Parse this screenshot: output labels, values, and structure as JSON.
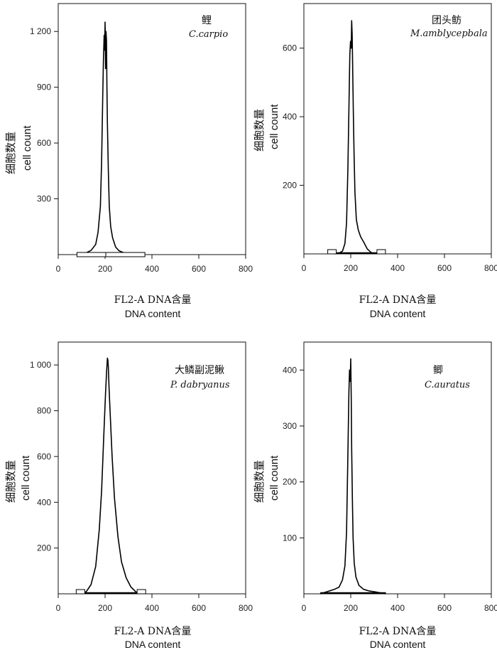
{
  "chart_data": [
    {
      "type": "area",
      "title": "鲤",
      "subtitle": "C.carpio",
      "ylabel": "细胞数量",
      "ylabel_en": "cell count",
      "xlabel": "FL2-A  DNA含量",
      "xlabel_en": "DNA content",
      "xlim": [
        0,
        800
      ],
      "ylim": [
        0,
        1350
      ],
      "xticks": [
        0,
        200,
        400,
        600,
        800
      ],
      "yticks": [
        300,
        600,
        900,
        1200
      ],
      "ytick_labels": [
        "300",
        "600",
        "900",
        "1 200"
      ],
      "gate": [
        80,
        370
      ],
      "peak_x": 203,
      "series": [
        {
          "x": [
            80,
            100,
            120,
            140,
            160,
            170,
            180,
            185,
            190,
            193,
            196,
            198,
            200,
            202,
            204,
            206,
            208,
            210,
            214,
            218,
            224,
            232,
            245,
            260,
            280,
            300,
            330,
            370
          ],
          "values": [
            0,
            4,
            10,
            22,
            55,
            120,
            260,
            500,
            850,
            1050,
            1180,
            1100,
            1250,
            1000,
            1200,
            1150,
            900,
            700,
            450,
            260,
            150,
            90,
            40,
            20,
            10,
            5,
            2,
            0
          ]
        }
      ]
    },
    {
      "type": "area",
      "title": "团头鲂",
      "subtitle": "M.amblycepbala",
      "ylabel": "细胞数量",
      "ylabel_en": "cell count",
      "xlabel": "FL2-A  DNA含量",
      "xlabel_en": "DNA content",
      "xlim": [
        0,
        800
      ],
      "ylim": [
        0,
        730
      ],
      "xticks": [
        0,
        200,
        400,
        600,
        800
      ],
      "yticks": [
        200,
        400,
        600
      ],
      "ytick_labels": [
        "200",
        "400",
        "600"
      ],
      "gate_markers": [
        120,
        330
      ],
      "peak_x": 205,
      "series": [
        {
          "x": [
            130,
            150,
            165,
            175,
            182,
            188,
            192,
            196,
            199,
            202,
            204,
            206,
            208,
            211,
            214,
            218,
            224,
            232,
            242,
            255,
            270,
            285,
            300
          ],
          "values": [
            0,
            2,
            8,
            30,
            90,
            250,
            420,
            580,
            620,
            600,
            680,
            640,
            560,
            420,
            300,
            180,
            100,
            70,
            50,
            35,
            15,
            5,
            0
          ]
        }
      ]
    },
    {
      "type": "area",
      "title": "大鳞副泥鳅",
      "subtitle": "P. dabryanus",
      "ylabel": "细胞数量",
      "ylabel_en": "cell count",
      "xlabel": "FL2-A  DNA含量",
      "xlabel_en": "DNA content",
      "xlim": [
        0,
        800
      ],
      "ylim": [
        0,
        1100
      ],
      "xticks": [
        0,
        200,
        400,
        600,
        800
      ],
      "yticks": [
        200,
        400,
        600,
        800,
        1000
      ],
      "ytick_labels": [
        "200",
        "400",
        "600",
        "800",
        "1 000"
      ],
      "gate_markers": [
        95,
        355
      ],
      "peak_x": 212,
      "series": [
        {
          "x": [
            100,
            120,
            140,
            160,
            175,
            185,
            195,
            202,
            207,
            210,
            212,
            214,
            217,
            222,
            230,
            240,
            255,
            270,
            290,
            310,
            330,
            345
          ],
          "values": [
            0,
            10,
            40,
            120,
            280,
            450,
            700,
            880,
            980,
            1030,
            1020,
            990,
            900,
            780,
            600,
            420,
            250,
            140,
            70,
            30,
            10,
            0
          ]
        }
      ]
    },
    {
      "type": "area",
      "title": "鲫",
      "subtitle": "C.auratus",
      "ylabel": "细胞数量",
      "ylabel_en": "cell count",
      "xlabel": "FL2-A  DNA含量",
      "xlabel_en": "DNA content",
      "xlim": [
        0,
        800
      ],
      "ylim": [
        0,
        450
      ],
      "xticks": [
        0,
        200,
        400,
        600,
        800
      ],
      "yticks": [
        100,
        200,
        300,
        400
      ],
      "ytick_labels": [
        "100",
        "200",
        "300",
        "400"
      ],
      "gate_line": [
        70,
        350
      ],
      "peak_x": 200,
      "series": [
        {
          "x": [
            70,
            100,
            130,
            150,
            165,
            175,
            182,
            188,
            192,
            195,
            198,
            200,
            202,
            204,
            207,
            210,
            215,
            222,
            235,
            255,
            280,
            310,
            350
          ],
          "values": [
            0,
            4,
            8,
            12,
            25,
            50,
            110,
            250,
            360,
            400,
            380,
            420,
            350,
            260,
            170,
            100,
            55,
            30,
            15,
            8,
            5,
            3,
            0
          ]
        }
      ]
    }
  ]
}
